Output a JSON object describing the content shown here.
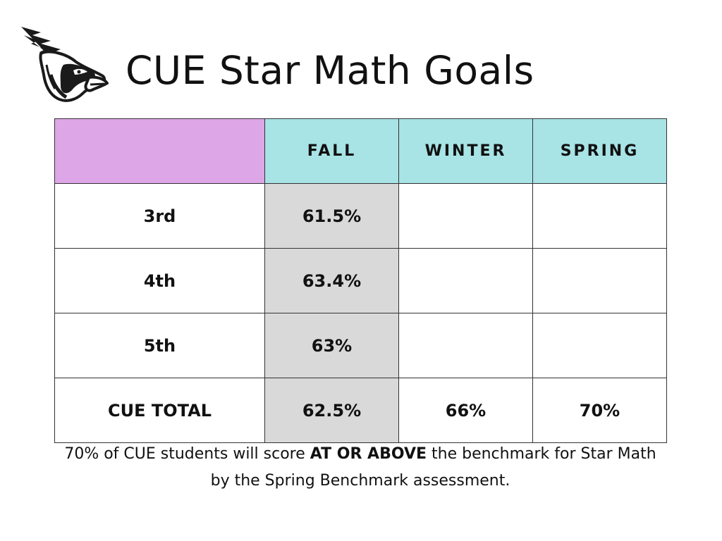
{
  "title": "CUE Star Math Goals",
  "logo": {
    "icon": "cardinal-head-icon"
  },
  "table": {
    "columns": [
      "",
      "FALL",
      "WINTER",
      "SPRING"
    ],
    "rows": [
      {
        "label": "3rd",
        "fall": "61.5%",
        "winter": "",
        "spring": ""
      },
      {
        "label": "4th",
        "fall": "63.4%",
        "winter": "",
        "spring": ""
      },
      {
        "label": "5th",
        "fall": "63%",
        "winter": "",
        "spring": ""
      },
      {
        "label": "CUE TOTAL",
        "fall": "62.5%",
        "winter": "66%",
        "spring": "70%"
      }
    ]
  },
  "footnote": {
    "before": "70% of CUE students will score ",
    "emphasis": "AT OR ABOVE",
    "after": " the benchmark for Star Math by the Spring Benchmark assessment."
  },
  "colors": {
    "corner": "#dda6e6",
    "header": "#a8e3e6",
    "fall_column": "#d9d9d9",
    "border": "#333333"
  }
}
